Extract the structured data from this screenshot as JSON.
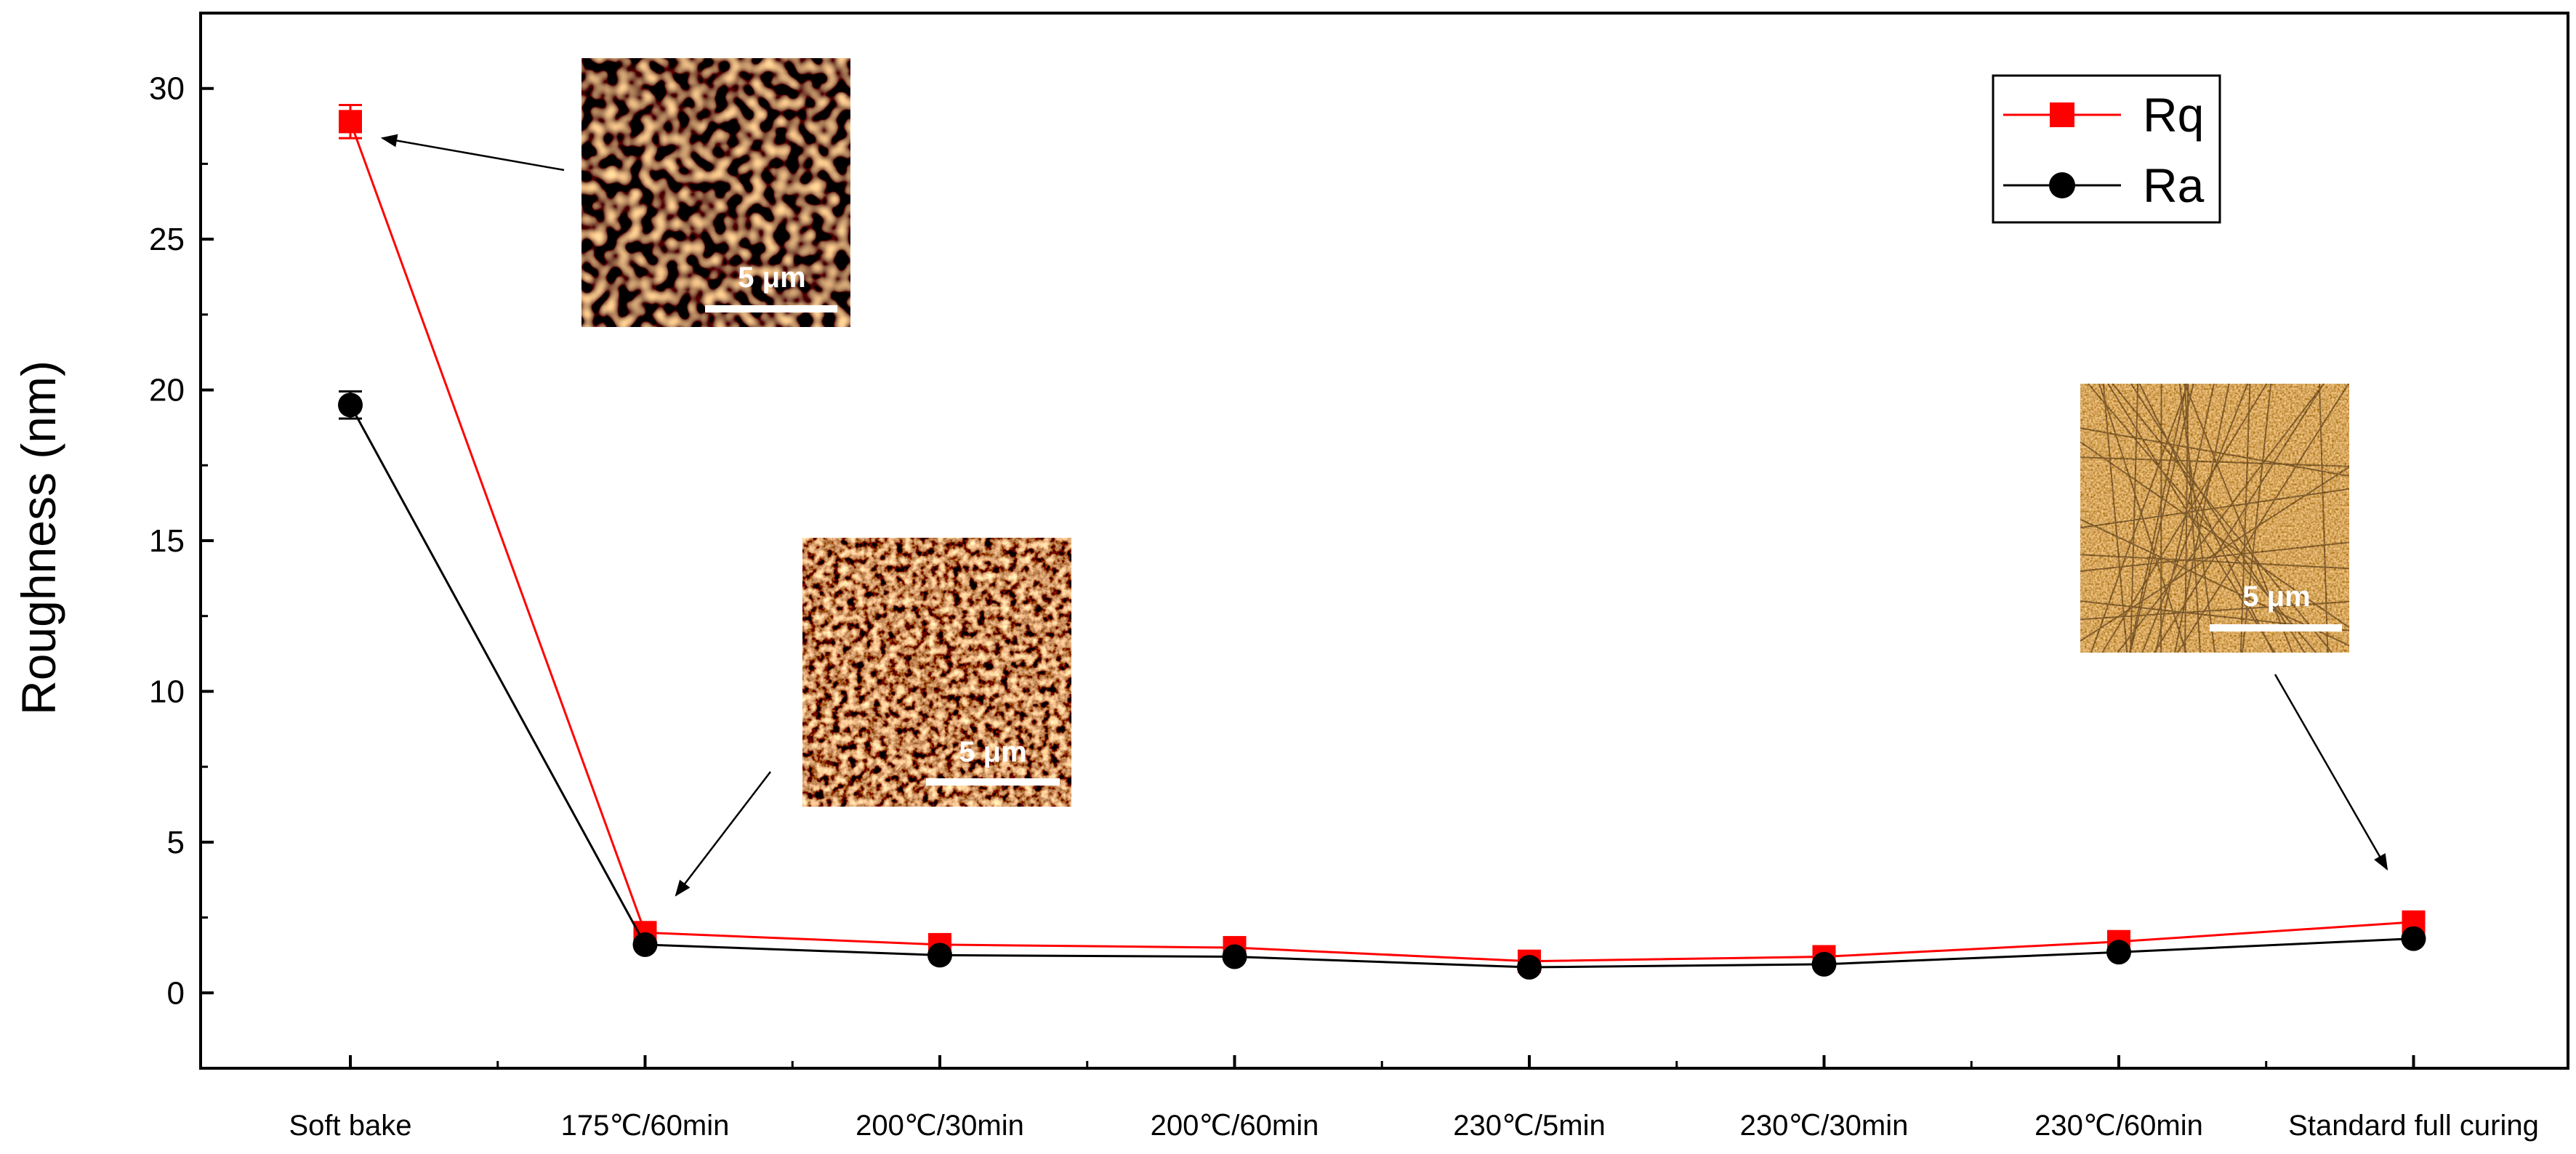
{
  "chart_data": {
    "type": "line",
    "ylabel": "Roughness (nm)",
    "xlabel": "",
    "title": "",
    "ylim": [
      -2.5,
      32.5
    ],
    "yticks": [
      0,
      5,
      10,
      15,
      20,
      25,
      30
    ],
    "categories": [
      "Soft bake",
      "175℃/60min",
      "200℃/30min",
      "200℃/60min",
      "230℃/5min",
      "230℃/30min",
      "230℃/60min",
      "Standard full curing"
    ],
    "series": [
      {
        "name": "Rq",
        "color": "#ff0000",
        "marker": "square",
        "values": [
          28.9,
          2.0,
          1.6,
          1.5,
          1.05,
          1.2,
          1.7,
          2.35
        ],
        "errors": [
          0.55,
          0.1,
          0.1,
          0.1,
          0.1,
          0.1,
          0.1,
          0.1
        ]
      },
      {
        "name": "Ra",
        "color": "#000000",
        "marker": "circle",
        "values": [
          19.5,
          1.6,
          1.25,
          1.2,
          0.85,
          0.95,
          1.35,
          1.8
        ],
        "errors": [
          0.45,
          0.1,
          0.1,
          0.1,
          0.1,
          0.1,
          0.1,
          0.1
        ]
      }
    ],
    "legend_position": "top-right",
    "grid": false,
    "annotations": {
      "scale_bar_label": "5 μm",
      "insets": [
        {
          "name": "afm-soft-bake",
          "points_to": "Soft bake",
          "series": "Rq"
        },
        {
          "name": "afm-175-60",
          "points_to": "175℃/60min",
          "series": "Rq"
        },
        {
          "name": "afm-standard-full-curing",
          "points_to": "Standard full curing",
          "series": "Rq"
        }
      ]
    }
  }
}
